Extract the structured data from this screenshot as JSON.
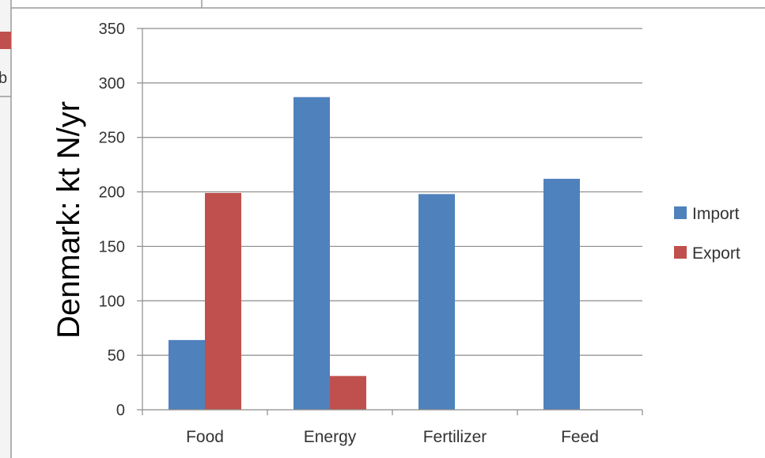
{
  "background": {
    "partial_text": "bo"
  },
  "colors": {
    "import": "#4f81bd",
    "export": "#c0504d",
    "grid": "#8c8c8c",
    "axis": "#8c8c8c"
  },
  "chart_data": {
    "type": "bar",
    "title": "",
    "xlabel": "",
    "ylabel": "Denmark: kt N/yr",
    "categories": [
      "Food",
      "Energy",
      "Fertilizer",
      "Feed"
    ],
    "series": [
      {
        "name": "Import",
        "values": [
          64,
          287,
          198,
          212
        ]
      },
      {
        "name": "Export",
        "values": [
          199,
          31,
          0,
          0
        ]
      }
    ],
    "ylim": [
      0,
      350
    ],
    "yticks": [
      0,
      50,
      100,
      150,
      200,
      250,
      300,
      350
    ],
    "grid": true,
    "legend_position": "right"
  }
}
